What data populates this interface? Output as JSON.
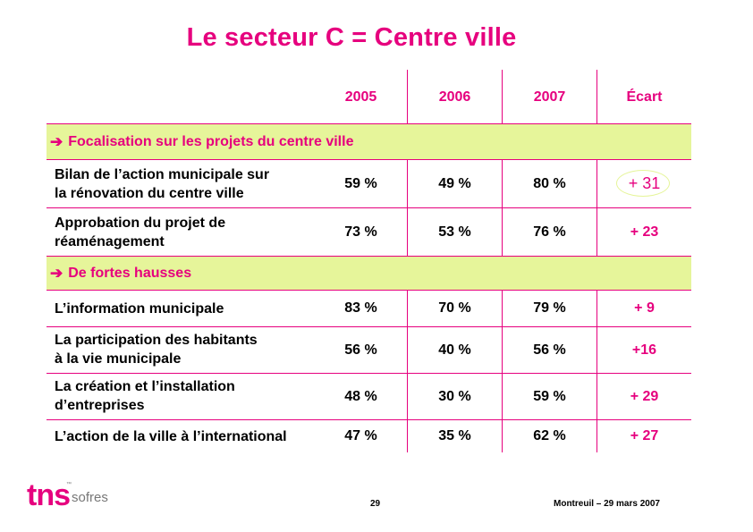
{
  "title": "Le secteur C = Centre ville",
  "columns": [
    "2005",
    "2006",
    "2007",
    "Écart"
  ],
  "section1": {
    "arrow": "➔",
    "label": "Focalisation sur les projets du centre ville"
  },
  "section2": {
    "arrow": "➔",
    "label": "De fortes hausses"
  },
  "rows": [
    {
      "line1": "Bilan de l’action municipale sur",
      "line2": "la rénovation du centre ville",
      "v2005": "59 %",
      "v2006": "49 %",
      "v2007": "80 %",
      "ecart": "+ 31"
    },
    {
      "line1": "Approbation du projet de",
      "line2": "réaménagement",
      "v2005": "73 %",
      "v2006": "53 %",
      "v2007": "76 %",
      "ecart": "+ 23"
    },
    {
      "line1": "L’information municipale",
      "line2": "",
      "v2005": "83 %",
      "v2006": "70 %",
      "v2007": "79 %",
      "ecart": "+ 9"
    },
    {
      "line1": "La participation des habitants",
      "line2": "à la vie municipale",
      "v2005": "56 %",
      "v2006": "40 %",
      "v2007": "56 %",
      "ecart": "+16"
    },
    {
      "line1": "La création et l’installation",
      "line2": "d’entreprises",
      "v2005": "48 %",
      "v2006": "30 %",
      "v2007": "59 %",
      "ecart": "+ 29"
    },
    {
      "line1": "L’action de la ville à l’international",
      "line2": "",
      "v2005": "47 %",
      "v2006": "35 %",
      "v2007": "62 %",
      "ecart": "+ 27"
    }
  ],
  "footer": {
    "page": "29",
    "date": "Montreuil – 29 mars 2007"
  },
  "logo": {
    "brand": "tns",
    "sub": "sofres",
    "mark": "™"
  },
  "colors": {
    "accent": "#e6007e",
    "band": "#e6f59a"
  }
}
